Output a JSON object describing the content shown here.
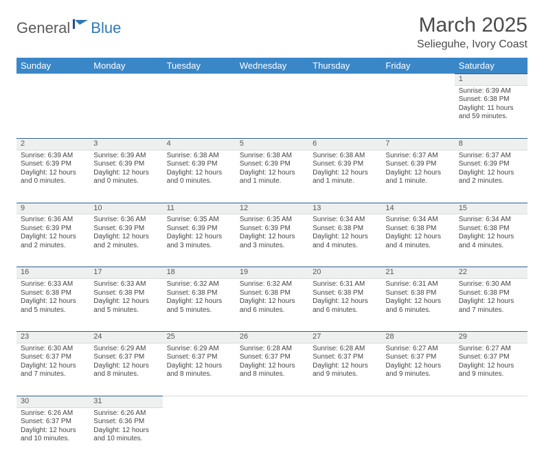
{
  "logo": {
    "part1": "General",
    "part2": "Blue"
  },
  "title": "March 2025",
  "location": "Selieguhe, Ivory Coast",
  "colors": {
    "header_bg": "#3a87c8",
    "header_text": "#ffffff",
    "daynum_bg": "#eef0f0",
    "top_border": "#2f5e8a",
    "logo_gray": "#5a5a5a",
    "logo_blue": "#2f78b7"
  },
  "weekdays": [
    "Sunday",
    "Monday",
    "Tuesday",
    "Wednesday",
    "Thursday",
    "Friday",
    "Saturday"
  ],
  "weeks": [
    [
      null,
      null,
      null,
      null,
      null,
      null,
      {
        "n": "1",
        "sunrise": "6:39 AM",
        "sunset": "6:38 PM",
        "daylight": "11 hours and 59 minutes."
      }
    ],
    [
      {
        "n": "2",
        "sunrise": "6:39 AM",
        "sunset": "6:39 PM",
        "daylight": "12 hours and 0 minutes."
      },
      {
        "n": "3",
        "sunrise": "6:39 AM",
        "sunset": "6:39 PM",
        "daylight": "12 hours and 0 minutes."
      },
      {
        "n": "4",
        "sunrise": "6:38 AM",
        "sunset": "6:39 PM",
        "daylight": "12 hours and 0 minutes."
      },
      {
        "n": "5",
        "sunrise": "6:38 AM",
        "sunset": "6:39 PM",
        "daylight": "12 hours and 1 minute."
      },
      {
        "n": "6",
        "sunrise": "6:38 AM",
        "sunset": "6:39 PM",
        "daylight": "12 hours and 1 minute."
      },
      {
        "n": "7",
        "sunrise": "6:37 AM",
        "sunset": "6:39 PM",
        "daylight": "12 hours and 1 minute."
      },
      {
        "n": "8",
        "sunrise": "6:37 AM",
        "sunset": "6:39 PM",
        "daylight": "12 hours and 2 minutes."
      }
    ],
    [
      {
        "n": "9",
        "sunrise": "6:36 AM",
        "sunset": "6:39 PM",
        "daylight": "12 hours and 2 minutes."
      },
      {
        "n": "10",
        "sunrise": "6:36 AM",
        "sunset": "6:39 PM",
        "daylight": "12 hours and 2 minutes."
      },
      {
        "n": "11",
        "sunrise": "6:35 AM",
        "sunset": "6:39 PM",
        "daylight": "12 hours and 3 minutes."
      },
      {
        "n": "12",
        "sunrise": "6:35 AM",
        "sunset": "6:39 PM",
        "daylight": "12 hours and 3 minutes."
      },
      {
        "n": "13",
        "sunrise": "6:34 AM",
        "sunset": "6:38 PM",
        "daylight": "12 hours and 4 minutes."
      },
      {
        "n": "14",
        "sunrise": "6:34 AM",
        "sunset": "6:38 PM",
        "daylight": "12 hours and 4 minutes."
      },
      {
        "n": "15",
        "sunrise": "6:34 AM",
        "sunset": "6:38 PM",
        "daylight": "12 hours and 4 minutes."
      }
    ],
    [
      {
        "n": "16",
        "sunrise": "6:33 AM",
        "sunset": "6:38 PM",
        "daylight": "12 hours and 5 minutes."
      },
      {
        "n": "17",
        "sunrise": "6:33 AM",
        "sunset": "6:38 PM",
        "daylight": "12 hours and 5 minutes."
      },
      {
        "n": "18",
        "sunrise": "6:32 AM",
        "sunset": "6:38 PM",
        "daylight": "12 hours and 5 minutes."
      },
      {
        "n": "19",
        "sunrise": "6:32 AM",
        "sunset": "6:38 PM",
        "daylight": "12 hours and 6 minutes."
      },
      {
        "n": "20",
        "sunrise": "6:31 AM",
        "sunset": "6:38 PM",
        "daylight": "12 hours and 6 minutes."
      },
      {
        "n": "21",
        "sunrise": "6:31 AM",
        "sunset": "6:38 PM",
        "daylight": "12 hours and 6 minutes."
      },
      {
        "n": "22",
        "sunrise": "6:30 AM",
        "sunset": "6:38 PM",
        "daylight": "12 hours and 7 minutes."
      }
    ],
    [
      {
        "n": "23",
        "sunrise": "6:30 AM",
        "sunset": "6:37 PM",
        "daylight": "12 hours and 7 minutes."
      },
      {
        "n": "24",
        "sunrise": "6:29 AM",
        "sunset": "6:37 PM",
        "daylight": "12 hours and 8 minutes."
      },
      {
        "n": "25",
        "sunrise": "6:29 AM",
        "sunset": "6:37 PM",
        "daylight": "12 hours and 8 minutes."
      },
      {
        "n": "26",
        "sunrise": "6:28 AM",
        "sunset": "6:37 PM",
        "daylight": "12 hours and 8 minutes."
      },
      {
        "n": "27",
        "sunrise": "6:28 AM",
        "sunset": "6:37 PM",
        "daylight": "12 hours and 9 minutes."
      },
      {
        "n": "28",
        "sunrise": "6:27 AM",
        "sunset": "6:37 PM",
        "daylight": "12 hours and 9 minutes."
      },
      {
        "n": "29",
        "sunrise": "6:27 AM",
        "sunset": "6:37 PM",
        "daylight": "12 hours and 9 minutes."
      }
    ],
    [
      {
        "n": "30",
        "sunrise": "6:26 AM",
        "sunset": "6:37 PM",
        "daylight": "12 hours and 10 minutes."
      },
      {
        "n": "31",
        "sunrise": "6:26 AM",
        "sunset": "6:36 PM",
        "daylight": "12 hours and 10 minutes."
      },
      null,
      null,
      null,
      null,
      null
    ]
  ],
  "labels": {
    "sunrise": "Sunrise: ",
    "sunset": "Sunset: ",
    "daylight": "Daylight: "
  }
}
